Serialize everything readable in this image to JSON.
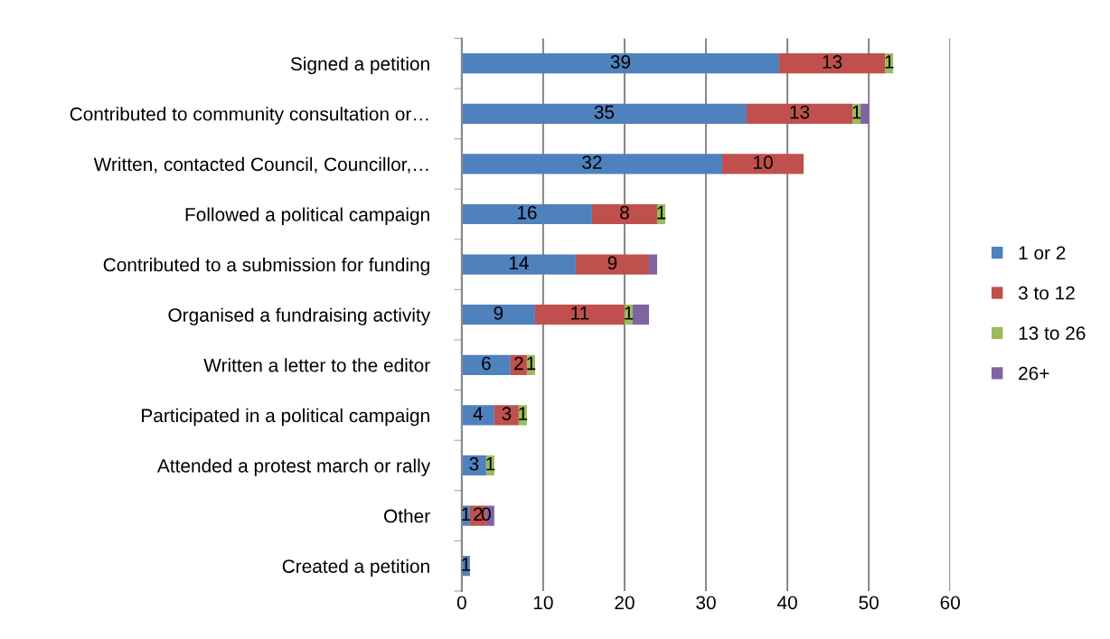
{
  "chart_data": {
    "type": "bar",
    "orientation": "horizontal",
    "stacked": true,
    "categories": [
      "Signed a petition",
      "Contributed to community consultation or…",
      "Written, contacted Council, Councillor,…",
      "Followed a political campaign",
      "Contributed to a submission for funding",
      "Organised a fundraising activity",
      "Written a letter to the editor",
      "Participated in a political campaign",
      "Attended a protest march or rally",
      "Other",
      "Created a petition"
    ],
    "series": [
      {
        "name": "1 or 2",
        "color": "#4f81bd",
        "values": [
          39,
          35,
          32,
          16,
          14,
          9,
          6,
          4,
          3,
          1,
          1
        ],
        "value_labels": [
          "39",
          "35",
          "32",
          "16",
          "14",
          "9",
          "6",
          "4",
          "3",
          "1",
          "1"
        ]
      },
      {
        "name": "3 to 12",
        "color": "#c0504d",
        "values": [
          13,
          13,
          10,
          8,
          9,
          11,
          2,
          3,
          0,
          2,
          0
        ],
        "value_labels": [
          "13",
          "13",
          "10",
          "8",
          "9",
          "11",
          "2",
          "3",
          null,
          "2",
          null
        ]
      },
      {
        "name": "13 to 26",
        "color": "#9bbb59",
        "values": [
          1,
          1,
          0,
          1,
          0,
          1,
          1,
          1,
          1,
          0,
          0
        ],
        "value_labels": [
          "1",
          "1",
          null,
          "1",
          null,
          "1",
          "1",
          "1",
          "1",
          "0",
          null
        ]
      },
      {
        "name": "26+",
        "color": "#8064a2",
        "values": [
          0,
          1,
          0,
          0,
          1,
          2,
          0,
          0,
          0,
          1,
          0
        ]
      }
    ],
    "xlim": [
      0,
      60
    ],
    "xticks": [
      0,
      10,
      20,
      30,
      40,
      50,
      60
    ],
    "grid": "x",
    "legend": "right"
  }
}
